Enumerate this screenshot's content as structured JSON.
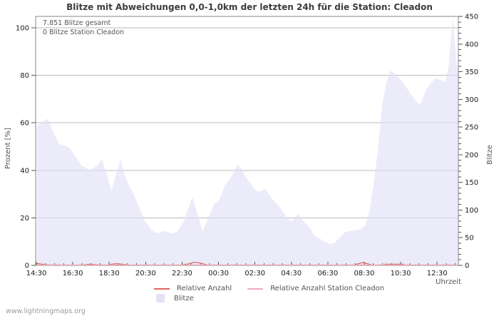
{
  "watermark": "www.lightningmaps.org",
  "chart_data": {
    "type": "area",
    "title": "Blitze mit Abweichungen 0,0-1,0km der letzten 24h für die Station: Cleadon",
    "xlabel": "Uhrzeit",
    "ylabel_left": "Prozent  [%]",
    "ylabel_right": "Blitze",
    "annotations": [
      "7.851 Blitze gesamt",
      "0 Blitze Station Cleadon"
    ],
    "x_ticks": [
      "14:30",
      "16:30",
      "18:30",
      "20:30",
      "22:30",
      "00:30",
      "02:30",
      "04:30",
      "06:30",
      "08:30",
      "10:30",
      "12:30"
    ],
    "x_minor_step_minutes": 30,
    "y_left": {
      "min": 0,
      "max": 100,
      "ticks": [
        0,
        20,
        40,
        60,
        80,
        100
      ],
      "grid": true
    },
    "y_right": {
      "min": 0,
      "max": 450,
      "ticks": [
        0,
        50,
        100,
        150,
        200,
        250,
        300,
        350,
        400,
        450
      ],
      "minor_step": 10
    },
    "colors": {
      "area_fill": "rgba(222,222,246,0.62)",
      "grid": "#bbbbbb",
      "border": "#888888",
      "tick": "#555555",
      "relative": "#dc6460",
      "relative_station": "#f2aab4"
    },
    "series": [
      {
        "name": "Blitze",
        "kind": "area",
        "axis": "right",
        "points": [
          [
            "14:31",
            251
          ],
          [
            "15:07",
            265
          ],
          [
            "15:26",
            241
          ],
          [
            "15:44",
            220
          ],
          [
            "16:12",
            215
          ],
          [
            "16:24",
            209
          ],
          [
            "16:36",
            198
          ],
          [
            "16:59",
            180
          ],
          [
            "17:27",
            172
          ],
          [
            "17:50",
            180
          ],
          [
            "18:06",
            191
          ],
          [
            "18:23",
            163
          ],
          [
            "18:37",
            135
          ],
          [
            "18:53",
            165
          ],
          [
            "19:07",
            191
          ],
          [
            "19:25",
            157
          ],
          [
            "19:58",
            119
          ],
          [
            "20:28",
            80
          ],
          [
            "20:51",
            63
          ],
          [
            "21:08",
            58
          ],
          [
            "21:33",
            62
          ],
          [
            "21:57",
            57
          ],
          [
            "22:13",
            60
          ],
          [
            "22:36",
            80
          ],
          [
            "23:04",
            123
          ],
          [
            "23:37",
            62
          ],
          [
            "23:57",
            85
          ],
          [
            "00:14",
            110
          ],
          [
            "00:32",
            118
          ],
          [
            "00:51",
            144
          ],
          [
            "01:12",
            160
          ],
          [
            "01:33",
            182
          ],
          [
            "01:44",
            176
          ],
          [
            "01:54",
            166
          ],
          [
            "02:12",
            150
          ],
          [
            "02:33",
            135
          ],
          [
            "02:45",
            133
          ],
          [
            "03:04",
            138
          ],
          [
            "03:27",
            120
          ],
          [
            "03:50",
            106
          ],
          [
            "04:13",
            88
          ],
          [
            "04:30",
            79
          ],
          [
            "04:41",
            85
          ],
          [
            "04:53",
            93
          ],
          [
            "05:09",
            80
          ],
          [
            "05:28",
            70
          ],
          [
            "05:46",
            54
          ],
          [
            "06:10",
            46
          ],
          [
            "06:33",
            39
          ],
          [
            "06:51",
            40
          ],
          [
            "07:10",
            50
          ],
          [
            "07:26",
            60
          ],
          [
            "07:54",
            63
          ],
          [
            "08:17",
            65
          ],
          [
            "08:34",
            73
          ],
          [
            "08:48",
            100
          ],
          [
            "09:02",
            150
          ],
          [
            "09:16",
            215
          ],
          [
            "09:29",
            290
          ],
          [
            "09:41",
            325
          ],
          [
            "09:55",
            352
          ],
          [
            "10:14",
            345
          ],
          [
            "10:37",
            331
          ],
          [
            "11:00",
            312
          ],
          [
            "11:23",
            295
          ],
          [
            "11:35",
            291
          ],
          [
            "11:54",
            318
          ],
          [
            "12:10",
            330
          ],
          [
            "12:26",
            339
          ],
          [
            "12:40",
            335
          ],
          [
            "12:56",
            331
          ],
          [
            "13:08",
            360
          ],
          [
            "13:17",
            420
          ],
          [
            "13:22",
            447
          ],
          [
            "13:29",
            400
          ],
          [
            "13:33",
            370
          ],
          [
            "13:40",
            352
          ]
        ]
      },
      {
        "name": "Relative Anzahl",
        "kind": "line",
        "axis": "left",
        "segments": [
          [
            [
              "14:31",
              0.8
            ],
            [
              "15:00",
              0.3
            ],
            [
              "15:20",
              0.2
            ],
            [
              "15:49",
              0.15
            ]
          ],
          [
            [
              "17:03",
              0.2
            ],
            [
              "17:27",
              0.5
            ],
            [
              "17:57",
              0.2
            ]
          ],
          [
            [
              "18:27",
              0.3
            ],
            [
              "18:50",
              0.7
            ],
            [
              "19:05",
              0.6
            ],
            [
              "19:30",
              0.25
            ]
          ],
          [
            [
              "22:29",
              0.2
            ],
            [
              "22:50",
              0.6
            ],
            [
              "23:10",
              1.3
            ],
            [
              "23:25",
              1.1
            ],
            [
              "23:50",
              0.3
            ]
          ],
          [
            [
              "07:59",
              0.3
            ],
            [
              "08:25",
              1.2
            ],
            [
              "08:52",
              0.3
            ]
          ],
          [
            [
              "09:36",
              0.5
            ],
            [
              "10:41",
              0.5
            ]
          ]
        ]
      },
      {
        "name": "Relative Anzahl Station Cleadon",
        "kind": "line",
        "axis": "left",
        "segments": [
          [
            [
              "14:30",
              0
            ],
            [
              "13:40",
              0
            ]
          ]
        ]
      }
    ],
    "legend": [
      {
        "label": "Relative Anzahl",
        "color": "#dc6460",
        "marker": "line"
      },
      {
        "label": "Relative Anzahl Station Cleadon",
        "color": "#f2aab4",
        "marker": "line"
      },
      {
        "label": "Blitze",
        "color": "#e3e2f5",
        "marker": "box"
      }
    ]
  }
}
